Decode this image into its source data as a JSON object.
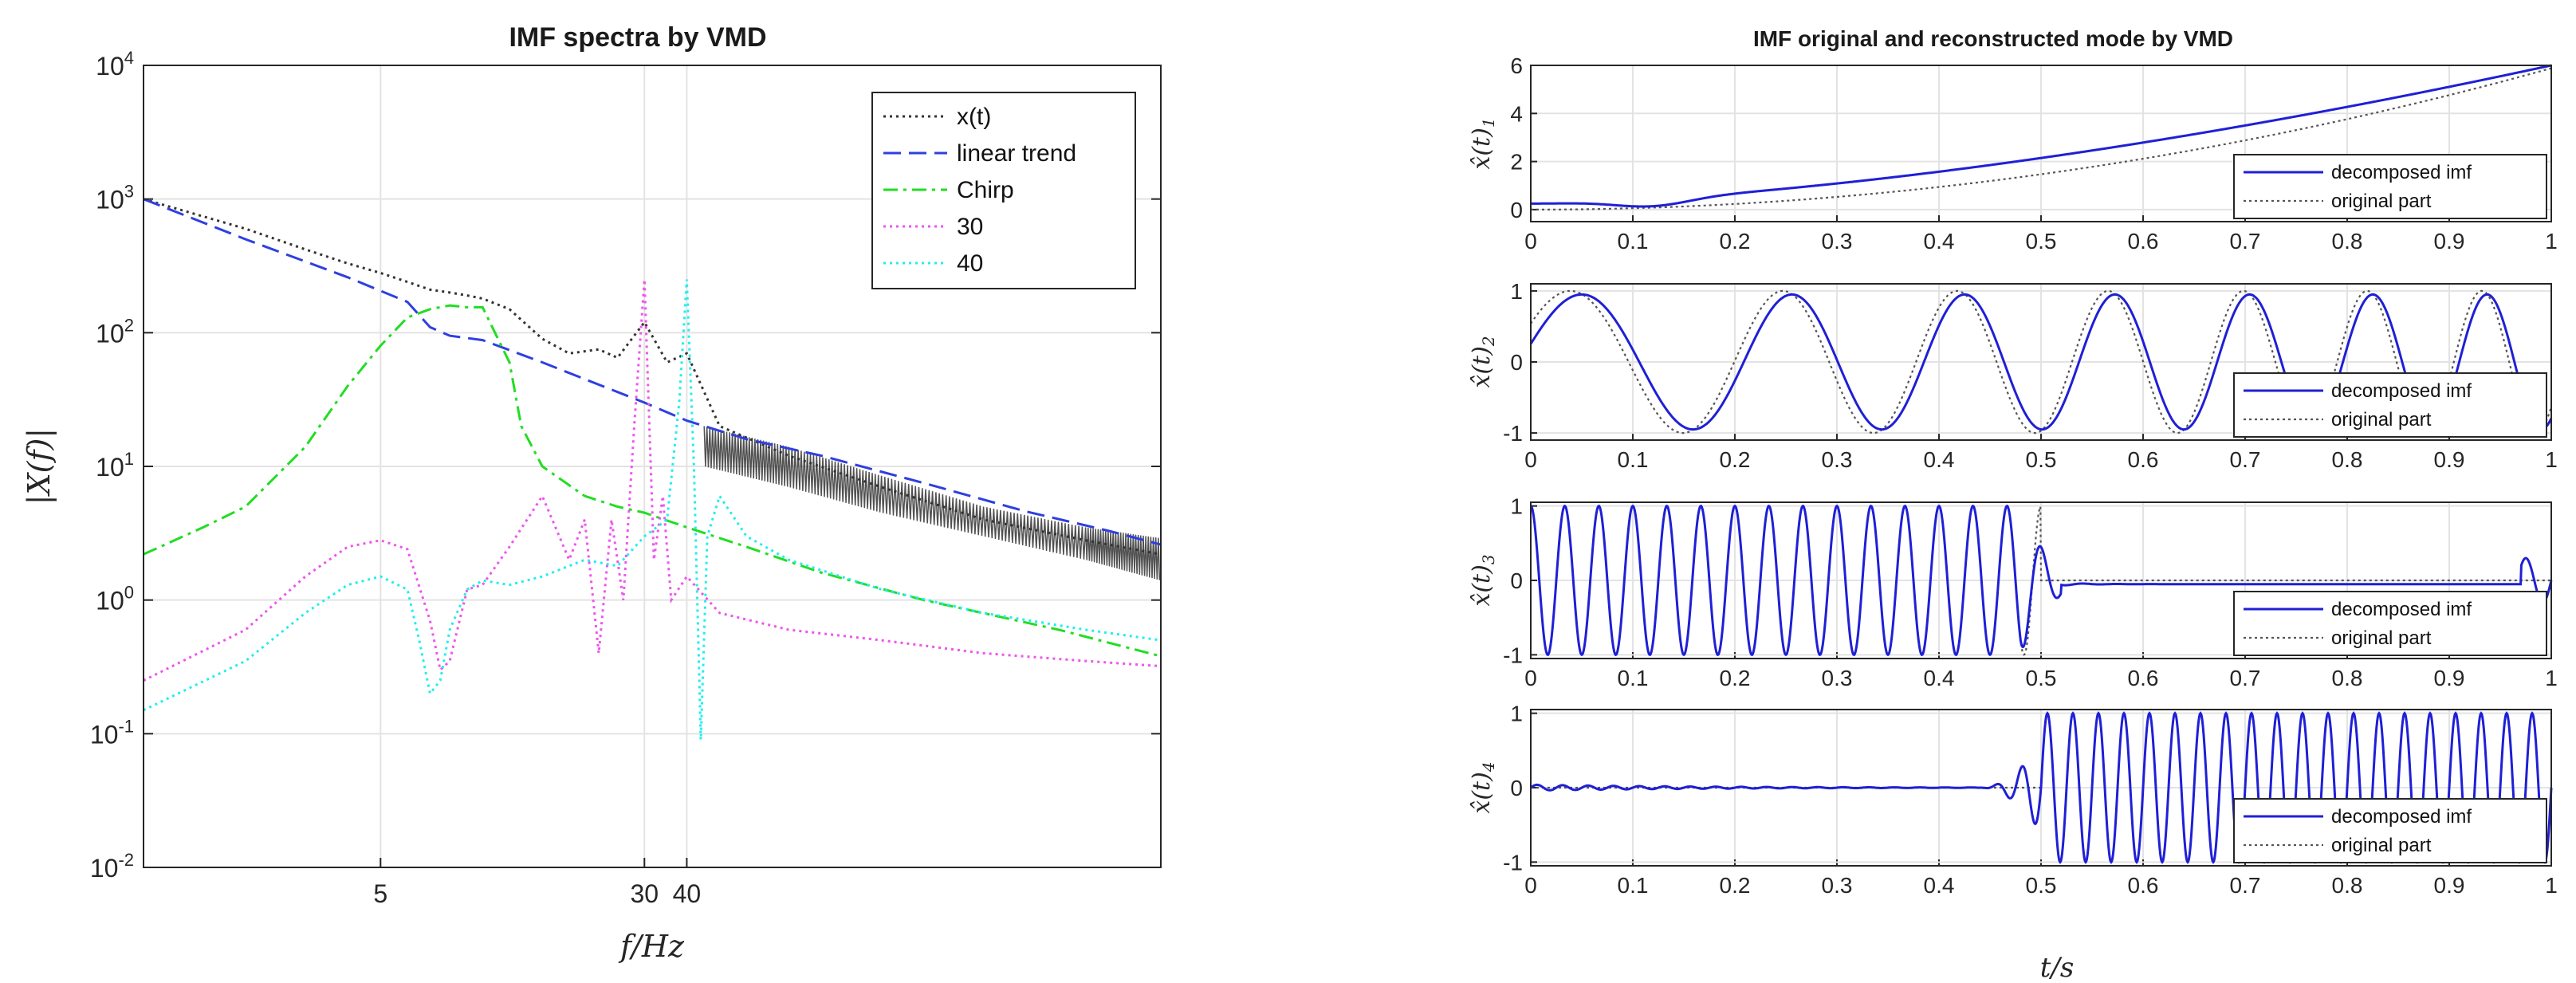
{
  "chart_data": [
    {
      "type": "line",
      "title": "IMF spectra by VMD",
      "xlabel": "f/Hz",
      "ylabel": "|X(f)|",
      "xscale": "log",
      "yscale": "log",
      "xlim": [
        1,
        1000
      ],
      "ylim": [
        0.01,
        10000
      ],
      "xticks": [
        5,
        30,
        40
      ],
      "yticks": [
        {
          "v": 0.01,
          "b": "10",
          "e": "-2"
        },
        {
          "v": 0.1,
          "b": "10",
          "e": "-1"
        },
        {
          "v": 1,
          "b": "10",
          "e": "0"
        },
        {
          "v": 10,
          "b": "10",
          "e": "1"
        },
        {
          "v": 100,
          "b": "10",
          "e": "2"
        },
        {
          "v": 1000,
          "b": "10",
          "e": "3"
        },
        {
          "v": 10000,
          "b": "10",
          "e": "4"
        }
      ],
      "grid": true,
      "legend_position": "top-right",
      "series": [
        {
          "name": "x(t)",
          "color": "#333333",
          "style": "dotted",
          "x": [
            1,
            2,
            3,
            4,
            5,
            6,
            7,
            8,
            9,
            10,
            12,
            15,
            18,
            22,
            25,
            30,
            35,
            40,
            50,
            80,
            150,
            300,
            600,
            1000
          ],
          "y": [
            1000,
            600,
            420,
            330,
            280,
            240,
            210,
            200,
            190,
            180,
            150,
            90,
            70,
            75,
            65,
            120,
            60,
            70,
            20,
            12,
            7,
            4,
            2.8,
            2.2
          ],
          "band": {
            "x": [
              45,
              80,
              150,
              300,
              600,
              1000
            ],
            "lo": [
              10,
              7,
              4.5,
              3,
              2,
              1.4
            ],
            "hi": [
              20,
              14,
              8.5,
              5,
              3.5,
              2.9
            ]
          }
        },
        {
          "name": "linear trend",
          "color": "#2f3fe0",
          "style": "dashed",
          "x": [
            1,
            2,
            4,
            6,
            7,
            8,
            10,
            15,
            20,
            30,
            40,
            60,
            100,
            200,
            400,
            700,
            1000
          ],
          "y": [
            1000,
            500,
            260,
            170,
            110,
            95,
            88,
            60,
            45,
            30,
            22,
            16,
            12,
            7.5,
            4.6,
            3.3,
            2.6
          ]
        },
        {
          "name": "Chirp",
          "color": "#22dd22",
          "style": "dashdot",
          "x": [
            1,
            1.5,
            2,
            3,
            4,
            5,
            6,
            7,
            8,
            9,
            10,
            12,
            13,
            15,
            20,
            25,
            30,
            40,
            60,
            100,
            200,
            500,
            1000
          ],
          "y": [
            2.2,
            3.5,
            5,
            14,
            40,
            80,
            130,
            150,
            160,
            155,
            155,
            60,
            20,
            10,
            6,
            5,
            4.5,
            3.5,
            2.5,
            1.6,
            1.0,
            0.6,
            0.38
          ]
        },
        {
          "name": "30",
          "color": "#ee55ee",
          "style": "dotted",
          "x": [
            1,
            2,
            3,
            4,
            5,
            6,
            7,
            7.5,
            8,
            9,
            10,
            12,
            15,
            18,
            20,
            22,
            24,
            26,
            28,
            30,
            32,
            34,
            36,
            40,
            50,
            80,
            150,
            300,
            600,
            1000
          ],
          "y": [
            0.25,
            0.6,
            1.5,
            2.5,
            2.8,
            2.4,
            0.7,
            0.3,
            0.35,
            1.2,
            1.3,
            2.5,
            6,
            2,
            4,
            0.4,
            4,
            1,
            20,
            250,
            2,
            6,
            1,
            1.5,
            0.8,
            0.6,
            0.5,
            0.4,
            0.35,
            0.32
          ]
        },
        {
          "name": "40",
          "color": "#22eeee",
          "style": "dotted",
          "x": [
            1,
            2,
            3,
            4,
            5,
            6,
            6.5,
            7,
            7.5,
            8,
            9,
            10,
            12,
            15,
            20,
            25,
            30,
            35,
            38,
            40,
            42,
            44,
            46,
            50,
            60,
            80,
            150,
            300,
            600,
            1000
          ],
          "y": [
            0.15,
            0.35,
            0.8,
            1.3,
            1.5,
            1.2,
            0.5,
            0.2,
            0.25,
            0.6,
            1.2,
            1.4,
            1.3,
            1.5,
            2,
            1.8,
            3,
            4,
            30,
            250,
            10,
            0.09,
            3,
            6,
            3,
            2,
            1.2,
            0.8,
            0.6,
            0.5
          ]
        }
      ]
    },
    {
      "type": "line",
      "title": "IMF original and reconstructed mode by VMD",
      "panels": [
        {
          "ylabel": "x̂1(t)",
          "sub": "1",
          "ylim": [
            -0.5,
            6
          ],
          "yticks": [
            0,
            2,
            4,
            6
          ],
          "xticks": [
            0,
            0.1,
            0.2,
            0.3,
            0.4,
            0.5,
            0.6,
            0.7,
            0.8,
            0.9,
            1
          ],
          "xlim": [
            0,
            1
          ],
          "legend": [
            "decomposed imf",
            "original part"
          ],
          "kind": "trend"
        },
        {
          "ylabel": "x̂2(t)",
          "sub": "2",
          "ylim": [
            -1.1,
            1.1
          ],
          "yticks": [
            -1,
            0,
            1
          ],
          "xticks": [
            0,
            0.1,
            0.2,
            0.3,
            0.4,
            0.5,
            0.6,
            0.7,
            0.8,
            0.9,
            1
          ],
          "xlim": [
            0,
            1
          ],
          "legend": [
            "decomposed imf",
            "original part"
          ],
          "kind": "chirp"
        },
        {
          "ylabel": "x̂3(t)",
          "sub": "3",
          "ylim": [
            -1.05,
            1.05
          ],
          "yticks": [
            -1,
            0,
            1
          ],
          "xticks": [
            0,
            0.1,
            0.2,
            0.3,
            0.4,
            0.5,
            0.6,
            0.7,
            0.8,
            0.9,
            1
          ],
          "xlim": [
            0,
            1
          ],
          "legend": [
            "decomposed imf",
            "original part"
          ],
          "kind": "f30"
        },
        {
          "ylabel": "x̂4(t)",
          "sub": "4",
          "ylim": [
            -1.05,
            1.05
          ],
          "yticks": [
            -1,
            0,
            1
          ],
          "xticks": [
            0,
            0.1,
            0.2,
            0.3,
            0.4,
            0.5,
            0.6,
            0.7,
            0.8,
            0.9,
            1
          ],
          "xlim": [
            0,
            1
          ],
          "legend": [
            "decomposed imf",
            "original part"
          ],
          "kind": "f40"
        }
      ],
      "xlabel": "t/s",
      "colors": {
        "imf": "#1f1fd6",
        "orig": "#555555"
      }
    }
  ]
}
